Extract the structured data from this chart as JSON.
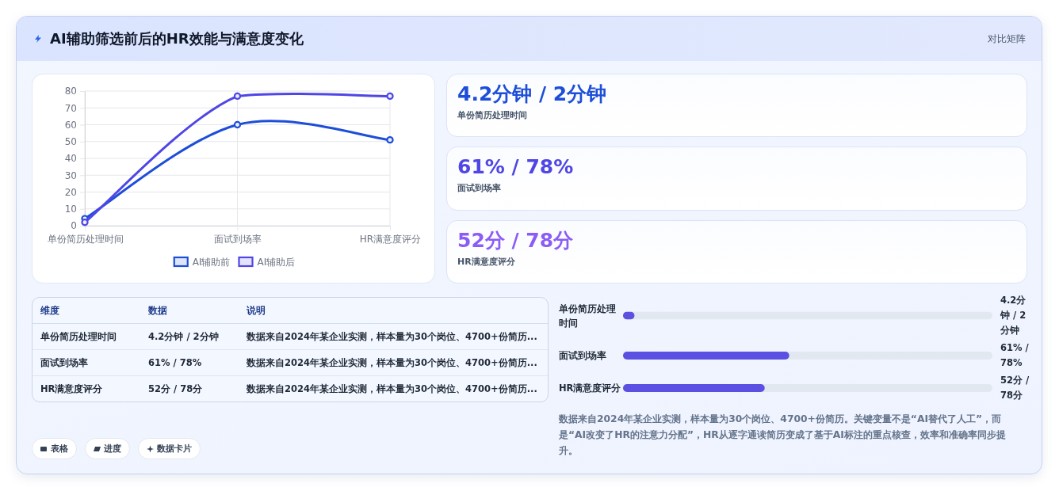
{
  "chart_data": [
    {
      "type": "other",
      "title": "AI辅助筛选前后的HR效能与满意度变化",
      "subtitle": "对比矩阵"
    },
    {
      "type": "line",
      "categories": [
        "单份简历处理时间",
        "面试到场率",
        "HR满意度评分"
      ],
      "series": [
        {
          "name": "AI辅助前",
          "color": "#1d4ed8",
          "values": [
            4.2,
            60,
            51
          ]
        },
        {
          "name": "AI辅助后",
          "color": "#4f46e5",
          "values": [
            2,
            77,
            77
          ]
        }
      ],
      "ylim": [
        0,
        80
      ],
      "yticks": [
        0,
        10,
        20,
        30,
        40,
        50,
        60,
        70,
        80
      ],
      "grid": true,
      "legend": "bottom",
      "marker": "circle"
    },
    {
      "type": "other",
      "categories": [
        "单份简历处理时间",
        "面试到场率",
        "HR满意度评分"
      ],
      "value_labels": [
        "4.2分钟 / 2分钟",
        "61% / 78%",
        "52分 / 78分"
      ]
    },
    {
      "type": "other",
      "categories": [
        "维度",
        "数据",
        "说明"
      ],
      "y_categories": [
        "单份简历处理时间",
        "面试到场率",
        "HR满意度评分"
      ],
      "cell_labels": [
        [
          "4.2分钟 / 2分钟",
          "数据来自2024年某企业实测，样本量为30个岗位、4700+份简历..."
        ],
        [
          "61% / 78%",
          "数据来自2024年某企业实测，样本量为30个岗位、4700+份简历..."
        ],
        [
          "52分 / 78分",
          "数据来自2024年某企业实测，样本量为30个岗位、4700+份简历..."
        ]
      ],
      "annotations": [
        "表格",
        "进度",
        "数据卡片"
      ]
    },
    {
      "type": "bar",
      "orientation": "horizontal",
      "categories": [
        "单份简历处理时间",
        "面试到场率",
        "HR满意度评分"
      ],
      "values": [
        4.2,
        61,
        52
      ],
      "color": "#5b50e2",
      "value_labels": [
        "4.2分钟 / 2分钟",
        "61% / 78%",
        "52分 / 78分"
      ],
      "tick_labels": "y",
      "annotations": [
        "数据来自2024年某企业实测，样本量为30个岗位、4700+份简历。关键变量不是“AI替代了人工”，而是“AI改变了HR的注意力分配”，HR从逐字通读简历变成了基于AI标注的重点核查，效率和准确率同步提升。"
      ]
    }
  ]
}
